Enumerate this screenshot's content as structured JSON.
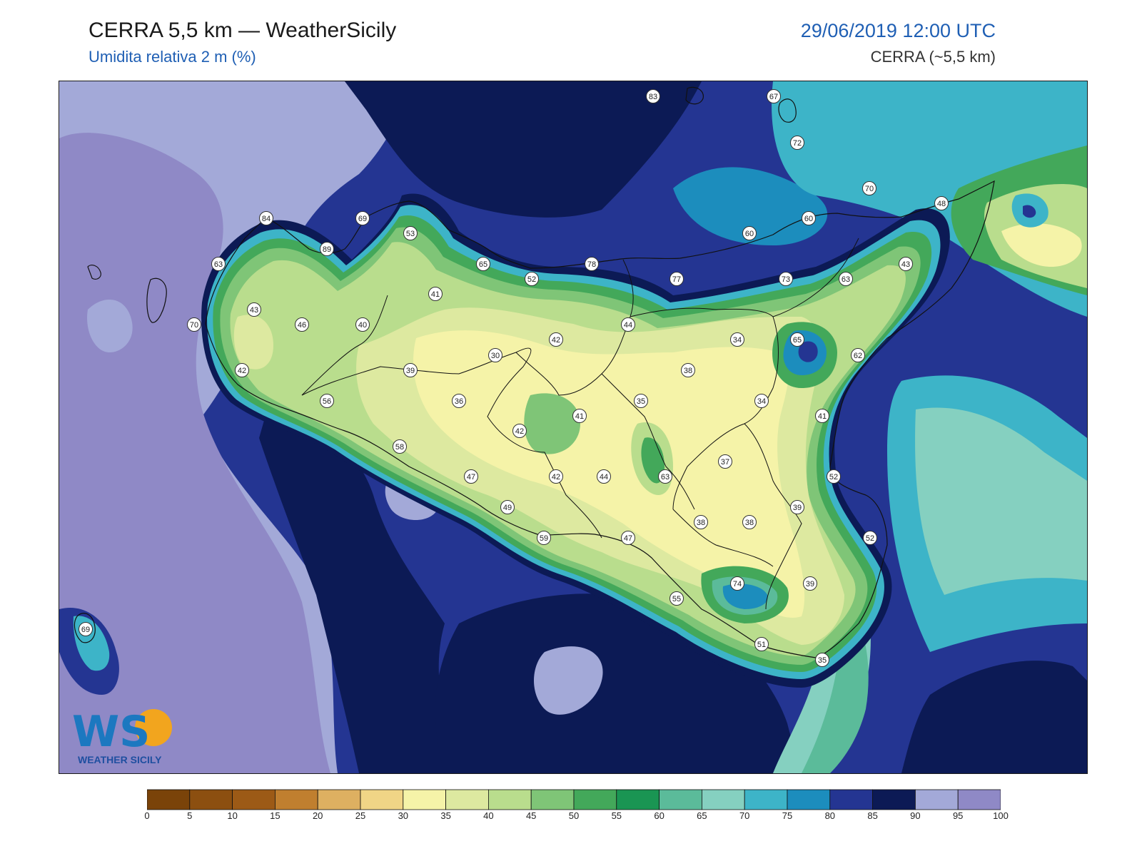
{
  "header": {
    "title": "CERRA 5,5 km — WeatherSicily",
    "subtitle": "Umidita relativa 2 m (%)",
    "timestamp": "29/06/2019 12:00 UTC",
    "model": "CERRA (~5,5 km)"
  },
  "logo": {
    "letters": "WS",
    "text": "WEATHER SICILY"
  },
  "colorbar": {
    "bounds": [
      "0",
      "5",
      "10",
      "15",
      "20",
      "25",
      "30",
      "35",
      "40",
      "45",
      "50",
      "55",
      "60",
      "65",
      "70",
      "75",
      "80",
      "85",
      "90",
      "95",
      "100"
    ],
    "colors": [
      "#7a4309",
      "#8c4f10",
      "#9c5a16",
      "#c07f2f",
      "#deb061",
      "#f0d586",
      "#f5f3a8",
      "#dde9a0",
      "#b9dd8d",
      "#7fc577",
      "#43a85a",
      "#1a9553",
      "#5bbb9a",
      "#85d0c0",
      "#3db4c8",
      "#1c8dbd",
      "#243592",
      "#0c1a55",
      "#a3a9d8",
      "#8f89c6"
    ]
  },
  "stations": [
    {
      "value": "83"
    },
    {
      "value": "67"
    },
    {
      "value": "72"
    },
    {
      "value": "70"
    },
    {
      "value": "48"
    },
    {
      "value": "84"
    },
    {
      "value": "69"
    },
    {
      "value": "89"
    },
    {
      "value": "53"
    },
    {
      "value": "60"
    },
    {
      "value": "60"
    },
    {
      "value": "63"
    },
    {
      "value": "65"
    },
    {
      "value": "78"
    },
    {
      "value": "77"
    },
    {
      "value": "73"
    },
    {
      "value": "63"
    },
    {
      "value": "43"
    },
    {
      "value": "52"
    },
    {
      "value": "41"
    },
    {
      "value": "43"
    },
    {
      "value": "70"
    },
    {
      "value": "46"
    },
    {
      "value": "40"
    },
    {
      "value": "44"
    },
    {
      "value": "42"
    },
    {
      "value": "34"
    },
    {
      "value": "65"
    },
    {
      "value": "30"
    },
    {
      "value": "62"
    },
    {
      "value": "42"
    },
    {
      "value": "39"
    },
    {
      "value": "38"
    },
    {
      "value": "56"
    },
    {
      "value": "36"
    },
    {
      "value": "35"
    },
    {
      "value": "34"
    },
    {
      "value": "41"
    },
    {
      "value": "41"
    },
    {
      "value": "42"
    },
    {
      "value": "58"
    },
    {
      "value": "37"
    },
    {
      "value": "47"
    },
    {
      "value": "42"
    },
    {
      "value": "44"
    },
    {
      "value": "63"
    },
    {
      "value": "52"
    },
    {
      "value": "49"
    },
    {
      "value": "39"
    },
    {
      "value": "38"
    },
    {
      "value": "38"
    },
    {
      "value": "59"
    },
    {
      "value": "47"
    },
    {
      "value": "52"
    },
    {
      "value": "74"
    },
    {
      "value": "39"
    },
    {
      "value": "55"
    },
    {
      "value": "51"
    },
    {
      "value": "35"
    },
    {
      "value": "69"
    }
  ]
}
